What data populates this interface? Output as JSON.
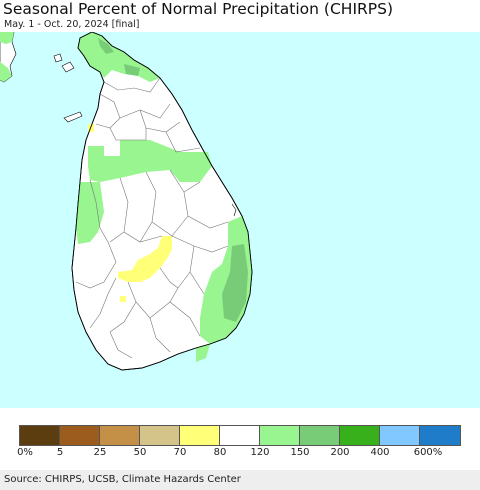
{
  "header": {
    "title": "Seasonal Percent of Normal Precipitation (CHIRPS)",
    "subtitle": "May. 1 - Oct. 20, 2024 [final]"
  },
  "map": {
    "ocean_color": "#ccffff",
    "land_color": "#ffffff",
    "region": "Sri Lanka"
  },
  "legend": {
    "colors": [
      "#5c3d10",
      "#9c5c1e",
      "#c49048",
      "#d4c48a",
      "#ffff78",
      "#ffffff",
      "#98f590",
      "#78cc78",
      "#38b01c",
      "#80c8ff",
      "#1e7cc8"
    ],
    "labels": [
      "0%",
      "5",
      "25",
      "50",
      "70",
      "80",
      "120",
      "150",
      "200",
      "400",
      "600%"
    ]
  },
  "footer": {
    "source": "Source: CHIRPS, UCSB, Climate Hazards Center"
  }
}
